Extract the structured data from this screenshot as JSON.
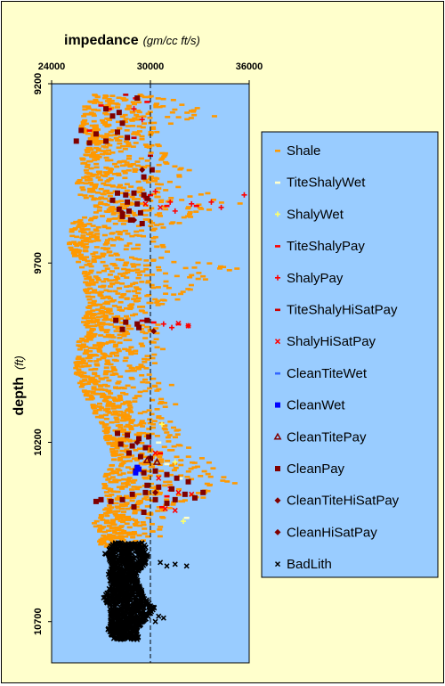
{
  "chart_data": {
    "type": "scatter",
    "title_bold": "impedance",
    "title_unit": "(gm/cc ft/s)",
    "ylabel_bold": "depth",
    "ylabel_unit": "(ft)",
    "x_axis_position": "top",
    "y_axis_inverted": true,
    "xlim": [
      24000,
      36000
    ],
    "ylim": [
      9200,
      10800
    ],
    "xticks": [
      24000,
      30000,
      36000
    ],
    "xtick_labels": [
      "24000",
      "30000",
      "36000"
    ],
    "yticks": [
      9200,
      9700,
      10200,
      10700
    ],
    "ytick_labels": [
      "9200",
      "9700",
      "10200",
      "10700"
    ],
    "reference_line_x": 30000,
    "plot_background": "#99ccff",
    "legend_position": "right",
    "legend": [
      {
        "label": "Shale",
        "marker": "dash",
        "color": "#ff9900"
      },
      {
        "label": "TiteShalyWet",
        "marker": "dash",
        "color": "#ffffcc"
      },
      {
        "label": "ShalyWet",
        "marker": "plus",
        "color": "#ffff66"
      },
      {
        "label": "TiteShalyPay",
        "marker": "dash",
        "color": "#ff0000"
      },
      {
        "label": "ShalyPay",
        "marker": "plus",
        "color": "#ff0000"
      },
      {
        "label": "TiteShalyHiSatPay",
        "marker": "dash",
        "color": "#cc0000"
      },
      {
        "label": "ShalyHiSatPay",
        "marker": "x",
        "color": "#ff0000"
      },
      {
        "label": "CleanTiteWet",
        "marker": "dash",
        "color": "#3366ff"
      },
      {
        "label": "CleanWet",
        "marker": "square",
        "color": "#0000ff"
      },
      {
        "label": "CleanTitePay",
        "marker": "triangle",
        "color": "#800000"
      },
      {
        "label": "CleanPay",
        "marker": "square",
        "color": "#800000"
      },
      {
        "label": "CleanTiteHiSatPay",
        "marker": "diamond",
        "color": "#800000"
      },
      {
        "label": "CleanHiSatPay",
        "marker": "diamond",
        "color": "#800000"
      },
      {
        "label": "BadLith",
        "marker": "x",
        "color": "#000000"
      }
    ],
    "series": [
      {
        "name": "Shale",
        "type": "band",
        "points": [
          [
            9230,
            26600,
            29600
          ],
          [
            9260,
            26000,
            33500
          ],
          [
            9290,
            25900,
            34000
          ],
          [
            9320,
            25800,
            31500
          ],
          [
            9350,
            26300,
            29800
          ],
          [
            9380,
            26200,
            31000
          ],
          [
            9410,
            25800,
            31200
          ],
          [
            9440,
            26100,
            32500
          ],
          [
            9470,
            25600,
            31700
          ],
          [
            9500,
            25400,
            34500
          ],
          [
            9530,
            26700,
            35800
          ],
          [
            9560,
            26500,
            33000
          ],
          [
            9590,
            25200,
            31700
          ],
          [
            9620,
            25200,
            30300
          ],
          [
            9650,
            25000,
            31300
          ],
          [
            9680,
            25400,
            30800
          ],
          [
            9710,
            25800,
            35500
          ],
          [
            9740,
            26100,
            33700
          ],
          [
            9770,
            26000,
            32800
          ],
          [
            9800,
            26300,
            31800
          ],
          [
            9830,
            26200,
            29600
          ],
          [
            9860,
            25900,
            30500
          ],
          [
            9890,
            26300,
            31900
          ],
          [
            9920,
            25600,
            31200
          ],
          [
            9950,
            25700,
            30800
          ],
          [
            9980,
            25400,
            30300
          ],
          [
            10010,
            25500,
            30200
          ],
          [
            10040,
            25800,
            31500
          ],
          [
            10070,
            26000,
            30800
          ],
          [
            10100,
            26500,
            31800
          ],
          [
            10130,
            26700,
            31000
          ],
          [
            10160,
            27200,
            31700
          ],
          [
            10190,
            27300,
            31900
          ],
          [
            10220,
            27600,
            32500
          ],
          [
            10250,
            27800,
            33700
          ],
          [
            10280,
            27300,
            34200
          ],
          [
            10310,
            27200,
            35200
          ],
          [
            10340,
            27200,
            34200
          ],
          [
            10370,
            27600,
            31900
          ],
          [
            10400,
            26900,
            30900
          ],
          [
            10430,
            26500,
            30600
          ],
          [
            10460,
            27100,
            30700
          ],
          [
            10490,
            26700,
            29200
          ]
        ]
      },
      {
        "name": "ShalyPay",
        "type": "points",
        "points": [
          [
            29600,
            9515
          ],
          [
            30300,
            9500
          ],
          [
            31200,
            9530
          ],
          [
            32500,
            9535
          ],
          [
            33700,
            9530
          ],
          [
            34300,
            9545
          ],
          [
            35700,
            9510
          ],
          [
            31500,
            9555
          ],
          [
            30800,
            9870
          ],
          [
            31300,
            9880
          ],
          [
            32300,
            9875
          ],
          [
            29000,
            9270
          ],
          [
            29500,
            9300
          ]
        ]
      },
      {
        "name": "TiteShalyPay",
        "type": "points",
        "points": [
          [
            27000,
            9260
          ],
          [
            27500,
            9270
          ],
          [
            29100,
            9240
          ],
          [
            29800,
            9250
          ],
          [
            26300,
            9330
          ],
          [
            30000,
            9510
          ],
          [
            31000,
            9540
          ],
          [
            32800,
            9540
          ],
          [
            30200,
            9865
          ],
          [
            31700,
            9870
          ],
          [
            30600,
            10230
          ],
          [
            29900,
            10210
          ],
          [
            31000,
            10350
          ],
          [
            30700,
            10380
          ]
        ]
      },
      {
        "name": "TiteShalyHiSatPay",
        "type": "points",
        "points": [
          [
            28500,
            9230
          ],
          [
            29000,
            9350
          ],
          [
            30000,
            9400
          ],
          [
            29500,
            9860
          ]
        ]
      },
      {
        "name": "ShalyHiSatPay",
        "type": "points",
        "points": [
          [
            29700,
            9535
          ],
          [
            30600,
            9545
          ],
          [
            31700,
            9868
          ],
          [
            32300,
            9875
          ],
          [
            30300,
            10230
          ],
          [
            31200,
            10330
          ],
          [
            31700,
            10340
          ],
          [
            32500,
            10345
          ],
          [
            30900,
            10385
          ],
          [
            31500,
            10390
          ],
          [
            30500,
            10300
          ]
        ]
      },
      {
        "name": "CleanPay",
        "type": "points",
        "points": [
          [
            27300,
            9270
          ],
          [
            27700,
            9290
          ],
          [
            28300,
            9310
          ],
          [
            28100,
            9280
          ],
          [
            29200,
            9240
          ],
          [
            25800,
            9330
          ],
          [
            25500,
            9360
          ],
          [
            26700,
            9340
          ],
          [
            27300,
            9360
          ],
          [
            26300,
            9365
          ],
          [
            28000,
            9335
          ],
          [
            28600,
            9350
          ],
          [
            28000,
            9505
          ],
          [
            28500,
            9510
          ],
          [
            29000,
            9505
          ],
          [
            29600,
            9510
          ],
          [
            27700,
            9525
          ],
          [
            28600,
            9530
          ],
          [
            29200,
            9535
          ],
          [
            29800,
            9520
          ],
          [
            28100,
            9550
          ],
          [
            28700,
            9555
          ],
          [
            29400,
            9560
          ],
          [
            28300,
            9570
          ],
          [
            28800,
            9580
          ],
          [
            29500,
            9590
          ],
          [
            27900,
            9860
          ],
          [
            28500,
            9865
          ],
          [
            29200,
            9870
          ],
          [
            29800,
            9860
          ],
          [
            28300,
            9885
          ],
          [
            29300,
            9880
          ],
          [
            28000,
            10175
          ],
          [
            28600,
            10180
          ],
          [
            29300,
            10190
          ],
          [
            29900,
            10185
          ],
          [
            28200,
            10205
          ],
          [
            28900,
            10210
          ],
          [
            29700,
            10215
          ],
          [
            28700,
            10230
          ],
          [
            29400,
            10240
          ],
          [
            30000,
            10245
          ],
          [
            29100,
            10280
          ],
          [
            29600,
            10285
          ],
          [
            30300,
            10280
          ],
          [
            31000,
            10290
          ],
          [
            31600,
            10300
          ],
          [
            32300,
            10310
          ],
          [
            29800,
            10320
          ],
          [
            30500,
            10325
          ],
          [
            31300,
            10330
          ],
          [
            32100,
            10345
          ],
          [
            33200,
            10340
          ],
          [
            28900,
            10345
          ],
          [
            29700,
            10340
          ],
          [
            30300,
            10360
          ],
          [
            31000,
            10370
          ],
          [
            27000,
            10360
          ],
          [
            27600,
            10365
          ],
          [
            28300,
            10360
          ],
          [
            29000,
            10380
          ],
          [
            29600,
            10395
          ],
          [
            26700,
            10365
          ],
          [
            31500,
            10360
          ],
          [
            32700,
            10355
          ],
          [
            30100,
            9440
          ],
          [
            29600,
            9460
          ]
        ]
      },
      {
        "name": "CleanHiSatPay",
        "type": "points",
        "points": [
          [
            29500,
            9440
          ],
          [
            28300,
            9560
          ],
          [
            29000,
            9580
          ],
          [
            30200,
            9890
          ],
          [
            29200,
            10200
          ],
          [
            30300,
            10340
          ]
        ]
      },
      {
        "name": "CleanTitePay",
        "type": "points",
        "points": [
          [
            29800,
            10250
          ],
          [
            30400,
            10255
          ]
        ]
      },
      {
        "name": "CleanWet",
        "type": "points",
        "points": [
          [
            29200,
            10270
          ],
          [
            29300,
            10275
          ],
          [
            29100,
            10285
          ]
        ]
      },
      {
        "name": "TiteShalyWet",
        "type": "points",
        "points": [
          [
            30500,
            10200
          ],
          [
            31000,
            10260
          ],
          [
            31800,
            10300
          ],
          [
            32200,
            10410
          ]
        ]
      },
      {
        "name": "ShalyWet",
        "type": "points",
        "points": [
          [
            30700,
            10150
          ],
          [
            31500,
            10255
          ],
          [
            32000,
            10420
          ]
        ]
      },
      {
        "name": "CleanTiteWet",
        "type": "points",
        "points": [
          [
            30300,
            10275
          ]
        ]
      },
      {
        "name": "BadLith",
        "type": "band",
        "points": [
          [
            10480,
            27800,
            29600
          ],
          [
            10510,
            27200,
            29900
          ],
          [
            10540,
            27700,
            29700
          ],
          [
            10570,
            27400,
            29100
          ],
          [
            10600,
            27600,
            29400
          ],
          [
            10630,
            27100,
            29600
          ],
          [
            10660,
            27500,
            30300
          ],
          [
            10690,
            27600,
            29800
          ],
          [
            10720,
            27400,
            29200
          ],
          [
            10750,
            27800,
            29300
          ]
        ]
      },
      {
        "name": "BadLith",
        "type": "points",
        "points": [
          [
            30600,
            10535
          ],
          [
            31000,
            10545
          ],
          [
            31500,
            10540
          ],
          [
            32200,
            10545
          ],
          [
            30800,
            10690
          ],
          [
            30300,
            10700
          ],
          [
            30500,
            10685
          ]
        ]
      }
    ]
  }
}
